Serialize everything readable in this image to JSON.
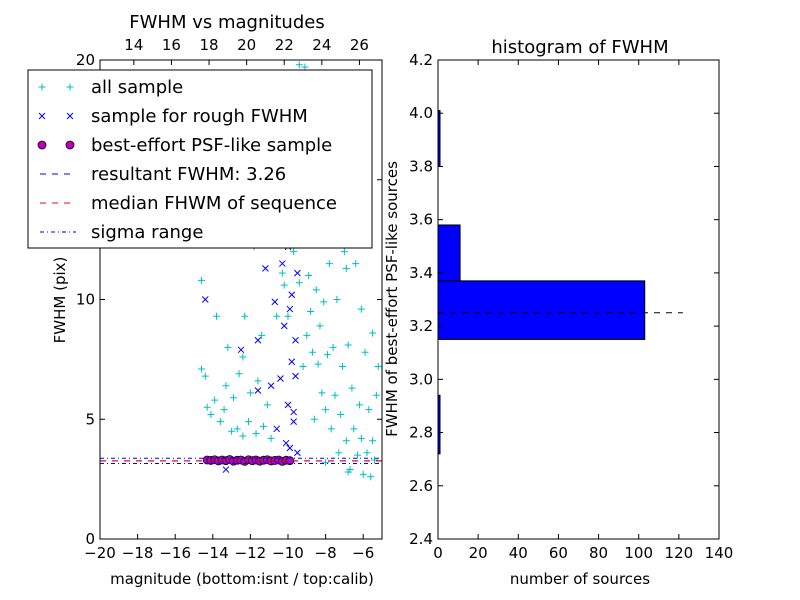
{
  "chart_data": [
    {
      "type": "scatter",
      "title": "FWHM vs magnitudes",
      "xlabel": "magnitude (bottom:isnt / top:calib)",
      "ylabel": "FWHM (pix)",
      "xlim": [
        -20,
        -5
      ],
      "ylim": [
        0,
        20
      ],
      "x_ticks": [
        -20,
        -18,
        -16,
        -14,
        -12,
        -10,
        -8,
        -6
      ],
      "x_tick_labels": [
        "−20",
        "−18",
        "−16",
        "−14",
        "−12",
        "−10",
        "−8",
        "−6"
      ],
      "y_ticks": [
        0,
        5,
        10,
        15,
        20
      ],
      "y_tick_labels": [
        "0",
        "5",
        "10",
        "15",
        "20"
      ],
      "top_axis": {
        "offset": 32.2,
        "ticks": [
          14,
          16,
          18,
          20,
          22,
          24,
          26
        ],
        "tick_labels": [
          "14",
          "16",
          "18",
          "20",
          "22",
          "24",
          "26"
        ]
      },
      "legend_position": "upper-left",
      "legend": [
        {
          "label": "all sample",
          "marker": "plus",
          "color": "#00bfbf"
        },
        {
          "label": "sample for rough FWHM",
          "marker": "x",
          "color": "#0000ff"
        },
        {
          "label": "best-effort PSF-like sample",
          "marker": "circle",
          "color": "#bf00bf"
        },
        {
          "label": "resultant FWHM: 3.26",
          "marker": "dashed",
          "color": "#0000ff"
        },
        {
          "label": "median FHWM of sequence",
          "marker": "dashed",
          "color": "#ff0000"
        },
        {
          "label": "sigma range",
          "marker": "dashdot",
          "color": "#0000ff"
        }
      ],
      "series": [
        {
          "name": "all sample",
          "marker": "plus",
          "color": "#00bfbf",
          "points": [
            [
              -14.6,
              10.8
            ],
            [
              -14.6,
              7.1
            ],
            [
              -14.4,
              6.8
            ],
            [
              -14.3,
              5.5
            ],
            [
              -14.1,
              5.2
            ],
            [
              -13.9,
              5.8
            ],
            [
              -13.8,
              9.3
            ],
            [
              -13.6,
              4.9
            ],
            [
              -13.4,
              5.4
            ],
            [
              -13.3,
              6.4
            ],
            [
              -13.2,
              8.0
            ],
            [
              -13.0,
              4.5
            ],
            [
              -12.9,
              5.9
            ],
            [
              -12.7,
              4.6
            ],
            [
              -12.6,
              6.9
            ],
            [
              -12.4,
              7.6
            ],
            [
              -12.4,
              4.3
            ],
            [
              -12.3,
              9.3
            ],
            [
              -12.1,
              4.9
            ],
            [
              -12.0,
              6.1
            ],
            [
              -11.8,
              12.2
            ],
            [
              -11.7,
              4.4
            ],
            [
              -11.6,
              6.6
            ],
            [
              -11.4,
              8.5
            ],
            [
              -11.3,
              4.7
            ],
            [
              -11.1,
              5.6
            ],
            [
              -11.0,
              13.1
            ],
            [
              -10.9,
              4.2
            ],
            [
              -10.8,
              15.8
            ],
            [
              -10.6,
              9.3
            ],
            [
              -10.5,
              12.6
            ],
            [
              -10.4,
              15.4
            ],
            [
              -10.3,
              11.1
            ],
            [
              -10.2,
              10.6
            ],
            [
              -10.1,
              14.0
            ],
            [
              -10.0,
              9.3
            ],
            [
              -9.9,
              19.0
            ],
            [
              -9.8,
              16.0
            ],
            [
              -9.7,
              12.0
            ],
            [
              -9.6,
              16.8
            ],
            [
              -9.5,
              13.2
            ],
            [
              -9.4,
              10.7
            ],
            [
              -9.3,
              14.5
            ],
            [
              -9.2,
              18.1
            ],
            [
              -9.2,
              7.2
            ],
            [
              -9.1,
              12.3
            ],
            [
              -9.0,
              8.5
            ],
            [
              -9.0,
              16.0
            ],
            [
              -8.9,
              11.0
            ],
            [
              -8.8,
              14.9
            ],
            [
              -8.8,
              9.5
            ],
            [
              -8.7,
              7.8
            ],
            [
              -8.6,
              12.3
            ],
            [
              -8.6,
              5.0
            ],
            [
              -8.5,
              10.4
            ],
            [
              -8.4,
              7.3
            ],
            [
              -8.3,
              8.9
            ],
            [
              -8.3,
              13.1
            ],
            [
              -8.2,
              6.1
            ],
            [
              -8.1,
              9.9
            ],
            [
              -8.0,
              5.4
            ],
            [
              -7.9,
              7.7
            ],
            [
              -7.8,
              11.5
            ],
            [
              -7.7,
              4.6
            ],
            [
              -7.6,
              8.0
            ],
            [
              -7.5,
              6.0
            ],
            [
              -7.4,
              10.0
            ],
            [
              -7.3,
              3.6
            ],
            [
              -7.2,
              5.2
            ],
            [
              -7.1,
              7.2
            ],
            [
              -7.0,
              12.0
            ],
            [
              -6.9,
              4.1
            ],
            [
              -6.8,
              8.1
            ],
            [
              -6.7,
              2.9
            ],
            [
              -6.6,
              6.3
            ],
            [
              -6.5,
              4.6
            ],
            [
              -6.4,
              11.5
            ],
            [
              -6.3,
              3.5
            ],
            [
              -6.2,
              5.6
            ],
            [
              -6.1,
              4.2
            ],
            [
              -6.0,
              2.7
            ],
            [
              -5.9,
              7.8
            ],
            [
              -5.8,
              3.6
            ],
            [
              -5.7,
              5.4
            ],
            [
              -5.6,
              2.6
            ],
            [
              -5.5,
              4.1
            ],
            [
              -5.4,
              3.3
            ],
            [
              -5.3,
              6.0
            ],
            [
              -8.0,
              3.2
            ],
            [
              -6.8,
              2.8
            ],
            [
              -9.4,
              19.8
            ],
            [
              -9.1,
              19.7
            ],
            [
              -8.4,
              17.9
            ],
            [
              -8.2,
              15.6
            ],
            [
              -7.9,
              14.2
            ],
            [
              -7.4,
              12.4
            ],
            [
              -6.9,
              11.3
            ],
            [
              -6.1,
              9.6
            ],
            [
              -5.5,
              8.6
            ],
            [
              -5.2,
              7.2
            ],
            [
              -9.8,
              17.5
            ],
            [
              -10.2,
              12.4
            ]
          ]
        },
        {
          "name": "sample for rough FWHM",
          "marker": "x",
          "color": "#0000ff",
          "points": [
            [
              -14.4,
              10.0
            ],
            [
              -13.3,
              2.9
            ],
            [
              -12.5,
              7.9
            ],
            [
              -11.6,
              6.2
            ],
            [
              -11.6,
              8.3
            ],
            [
              -11.2,
              11.3
            ],
            [
              -10.9,
              6.4
            ],
            [
              -10.7,
              9.9
            ],
            [
              -10.6,
              4.6
            ],
            [
              -10.5,
              13.4
            ],
            [
              -10.4,
              6.7
            ],
            [
              -10.3,
              11.5
            ],
            [
              -10.2,
              8.9
            ],
            [
              -10.1,
              4.0
            ],
            [
              -10.0,
              12.2
            ],
            [
              -10.0,
              5.6
            ],
            [
              -9.9,
              9.6
            ],
            [
              -9.9,
              3.8
            ],
            [
              -9.8,
              7.4
            ],
            [
              -9.8,
              10.2
            ],
            [
              -9.7,
              4.9
            ],
            [
              -9.7,
              5.3
            ],
            [
              -9.6,
              8.3
            ],
            [
              -9.6,
              6.8
            ],
            [
              -9.5,
              3.6
            ],
            [
              -9.5,
              11.1
            ],
            [
              -9.9,
              15.5
            ]
          ]
        },
        {
          "name": "best-effort PSF-like sample",
          "marker": "circle",
          "color": "#bf00bf",
          "points": [
            [
              -14.3,
              3.3
            ],
            [
              -14.1,
              3.28
            ],
            [
              -13.9,
              3.31
            ],
            [
              -13.7,
              3.26
            ],
            [
              -13.5,
              3.3
            ],
            [
              -13.3,
              3.27
            ],
            [
              -13.1,
              3.32
            ],
            [
              -12.9,
              3.25
            ],
            [
              -12.7,
              3.29
            ],
            [
              -12.5,
              3.3
            ],
            [
              -12.3,
              3.24
            ],
            [
              -12.1,
              3.31
            ],
            [
              -11.9,
              3.27
            ],
            [
              -11.7,
              3.3
            ],
            [
              -11.5,
              3.25
            ],
            [
              -11.3,
              3.29
            ],
            [
              -11.1,
              3.31
            ],
            [
              -10.9,
              3.26
            ],
            [
              -10.7,
              3.28
            ],
            [
              -10.5,
              3.3
            ],
            [
              -10.3,
              3.24
            ],
            [
              -10.1,
              3.29
            ],
            [
              -9.9,
              3.27
            ]
          ]
        }
      ],
      "reference_lines": [
        {
          "name": "resultant FWHM: 3.26",
          "y": 3.26,
          "style": "dashed",
          "color": "#0000ff"
        },
        {
          "name": "median FHWM of sequence",
          "y": 3.26,
          "style": "dashed",
          "color": "#ff0000"
        },
        {
          "name": "sigma range",
          "y": 3.15,
          "style": "dashdot",
          "color": "#0000ff"
        },
        {
          "name": "sigma range",
          "y": 3.37,
          "style": "dashdot",
          "color": "#0000ff"
        }
      ]
    },
    {
      "type": "bar",
      "orientation": "horizontal",
      "title": "histogram of FWHM",
      "xlabel": "number of sources",
      "ylabel": "FWHM of best-effort PSF-like sources",
      "xlim": [
        0,
        140
      ],
      "ylim": [
        2.4,
        4.2
      ],
      "x_ticks": [
        0,
        20,
        40,
        60,
        80,
        100,
        120,
        140
      ],
      "x_tick_labels": [
        "0",
        "20",
        "40",
        "60",
        "80",
        "100",
        "120",
        "140"
      ],
      "y_ticks": [
        2.4,
        2.6,
        2.8,
        3.0,
        3.2,
        3.4,
        3.6,
        3.8,
        4.0,
        4.2
      ],
      "y_tick_labels": [
        "2.4",
        "2.6",
        "2.8",
        "3.0",
        "3.2",
        "3.4",
        "3.6",
        "3.8",
        "4.0",
        "4.2"
      ],
      "bar_color": "#0000ff",
      "bins": [
        {
          "y0": 2.72,
          "y1": 2.94,
          "count": 1
        },
        {
          "y0": 3.15,
          "y1": 3.37,
          "count": 103
        },
        {
          "y0": 3.37,
          "y1": 3.58,
          "count": 11
        },
        {
          "y0": 3.8,
          "y1": 4.01,
          "count": 1
        }
      ],
      "reference_line": {
        "y": 3.25,
        "x_end": 122,
        "style": "dashed",
        "color": "#000000"
      }
    }
  ]
}
